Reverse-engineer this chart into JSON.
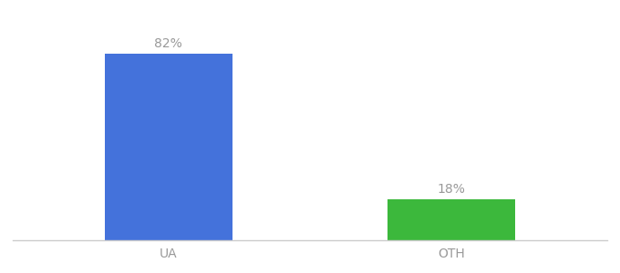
{
  "categories": [
    "UA",
    "OTH"
  ],
  "values": [
    82,
    18
  ],
  "bar_colors": [
    "#4472DB",
    "#3CB83C"
  ],
  "labels": [
    "82%",
    "18%"
  ],
  "background_color": "#ffffff",
  "ylim": [
    0,
    100
  ],
  "bar_width": 0.45,
  "label_fontsize": 10,
  "tick_fontsize": 10,
  "label_color": "#999999",
  "tick_color": "#999999",
  "spine_color": "#cccccc"
}
